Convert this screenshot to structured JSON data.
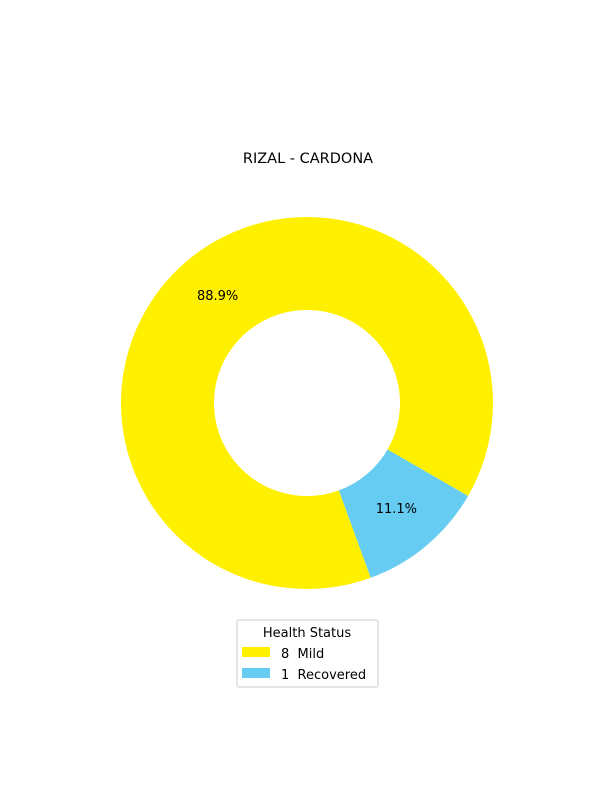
{
  "chart_data": {
    "type": "pie",
    "title": "RIZAL - CARDONA",
    "donut": true,
    "slices": [
      {
        "label": "8  Mild",
        "count": 8,
        "value": 88.9,
        "pct_label": "88.9%",
        "color": "#FFF000"
      },
      {
        "label": "1  Recovered",
        "count": 1,
        "value": 11.1,
        "pct_label": "11.1%",
        "color": "#66CCF2"
      }
    ],
    "legend": {
      "title": "Health Status",
      "placement": "bottom-center"
    }
  }
}
